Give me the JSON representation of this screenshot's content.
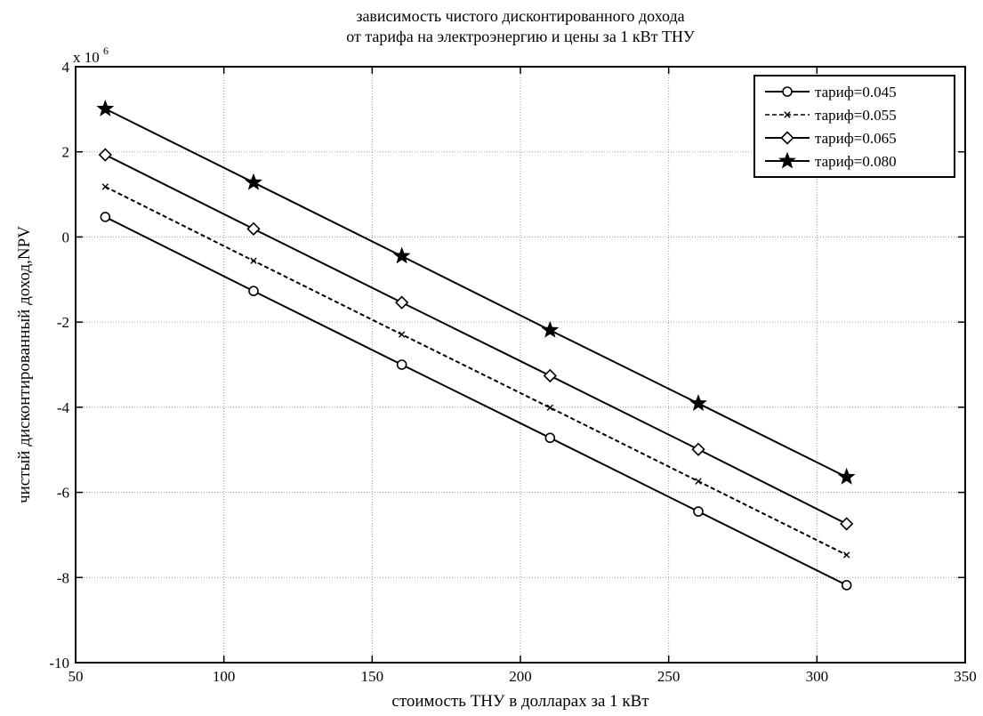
{
  "chart_data": {
    "type": "line",
    "title": [
      "зависимость чистого дисконтированного дохода",
      "от тарифа на электроэнергию и цены за 1 кВт ТНУ"
    ],
    "xlabel": "стоимость ТНУ в долларах за 1 кВт",
    "ylabel": "чистый дисконтированный доход,NPV",
    "y_multiplier_base": "x 10",
    "y_multiplier_exp": "6",
    "xlim": [
      50,
      350
    ],
    "ylim": [
      -10,
      4
    ],
    "x_ticks": [
      50,
      100,
      150,
      200,
      250,
      300,
      350
    ],
    "y_ticks": [
      -10,
      -8,
      -6,
      -4,
      -2,
      0,
      2,
      4
    ],
    "grid": true,
    "legend_position": "top-right",
    "x": [
      60,
      110,
      160,
      210,
      260,
      310
    ],
    "series": [
      {
        "name": "тариф=0.045",
        "marker": "circle",
        "line": "solid",
        "values": [
          0.47,
          -1.27,
          -3.0,
          -4.72,
          -6.45,
          -8.18
        ]
      },
      {
        "name": "тариф=0.055",
        "marker": "x",
        "line": "dashed",
        "values": [
          1.18,
          -0.56,
          -2.29,
          -4.01,
          -5.74,
          -7.47
        ]
      },
      {
        "name": "тариф=0.065",
        "marker": "diamond",
        "line": "solid",
        "values": [
          1.93,
          0.19,
          -1.54,
          -3.26,
          -4.99,
          -6.74
        ]
      },
      {
        "name": "тариф=0.080",
        "marker": "star",
        "line": "solid",
        "values": [
          3.01,
          1.28,
          -0.45,
          -2.19,
          -3.91,
          -5.64
        ]
      }
    ]
  }
}
